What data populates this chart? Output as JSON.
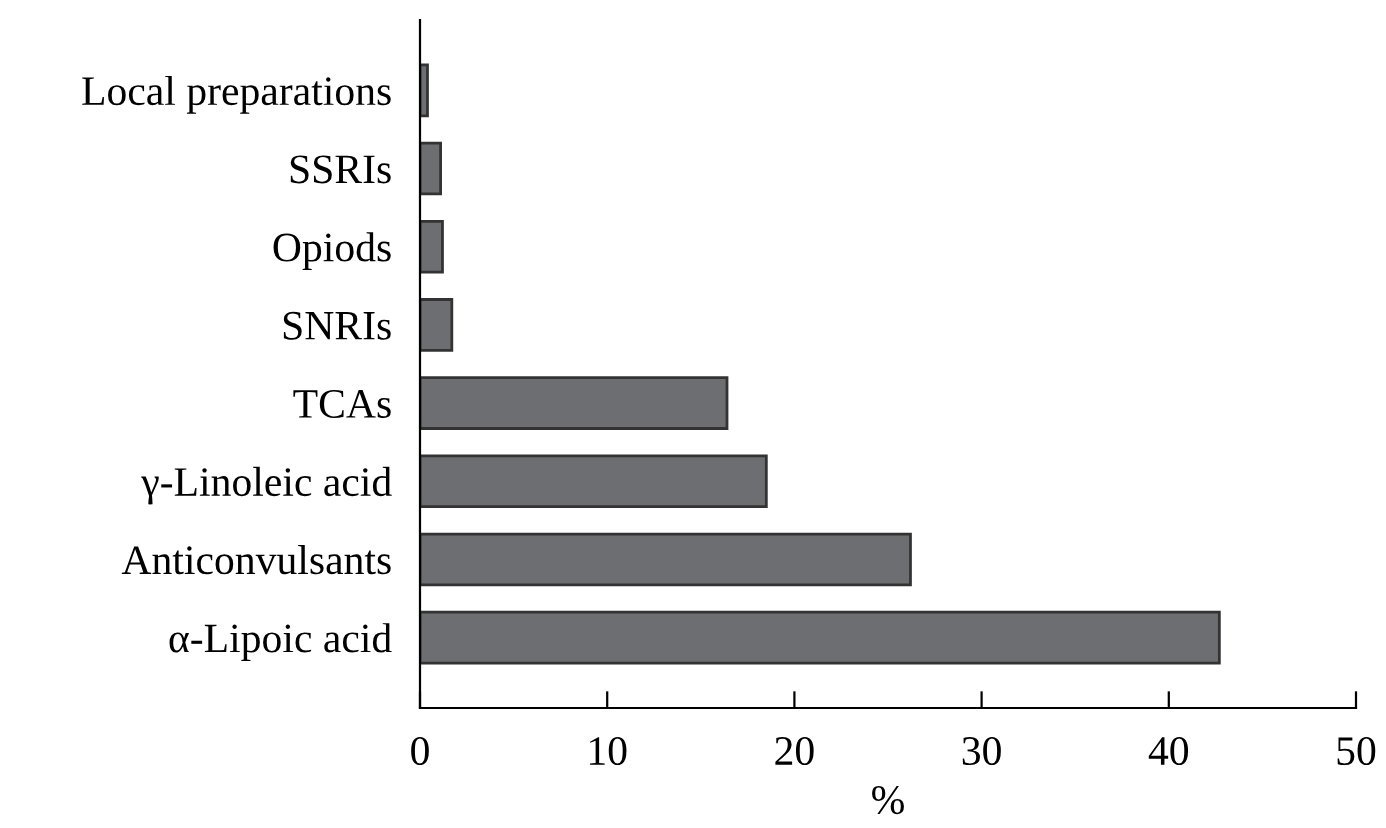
{
  "chart_data": {
    "type": "bar",
    "orientation": "horizontal",
    "xlabel": "%",
    "categories": [
      "Local preparations",
      "SSRIs",
      "Opiods",
      "SNRIs",
      "TCAs",
      "γ-Linoleic acid",
      "Anticonvulsants",
      "α-Lipoic acid"
    ],
    "values": [
      0.4,
      1.1,
      1.2,
      1.7,
      16.4,
      18.5,
      26.2,
      42.7
    ],
    "color": "#6d6e71",
    "xlim": [
      0,
      50
    ],
    "xticks": [
      0,
      10,
      20,
      30,
      40,
      50
    ],
    "grid": false,
    "legend": false
  }
}
